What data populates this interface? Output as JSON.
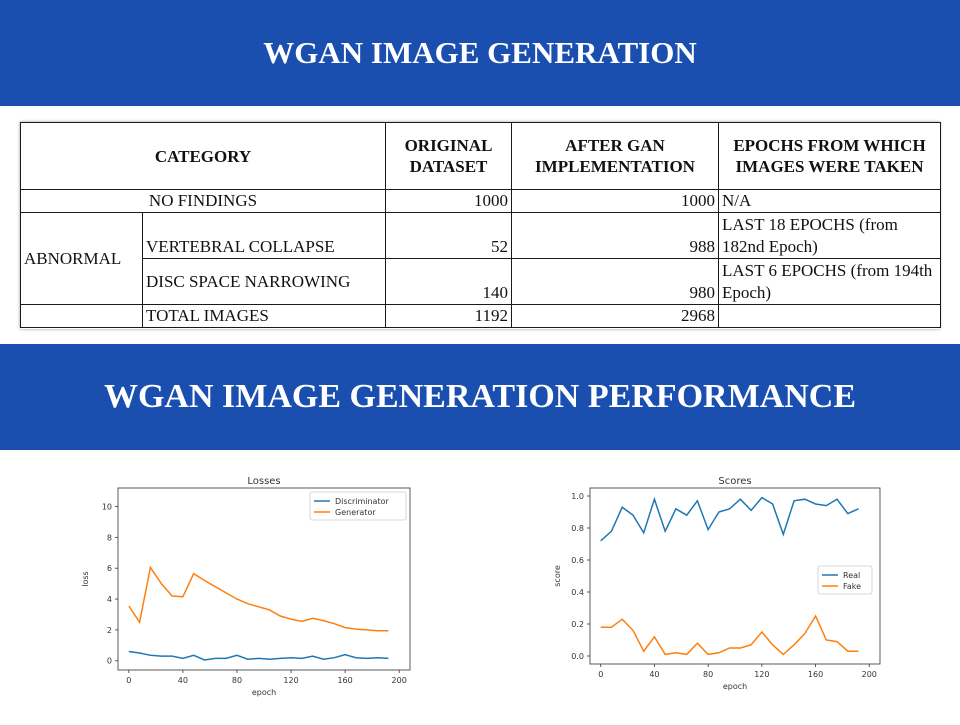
{
  "slide": {
    "title1": "WGAN IMAGE GENERATION",
    "title2": "WGAN IMAGE GENERATION PERFORMANCE"
  },
  "table": {
    "headers": [
      "CATEGORY",
      "ORIGINAL DATASET",
      "AFTER GAN IMPLEMENTATION",
      "EPOCHS FROM WHICH IMAGES WERE TAKEN"
    ],
    "no_findings": {
      "label": "NO FINDINGS",
      "original": "1000",
      "after": "1000",
      "epochs": "N/A"
    },
    "abnormal_label": "ABNORMAL",
    "vertebral": {
      "label": "VERTEBRAL COLLAPSE",
      "original": "52",
      "after": "988",
      "epochs": "LAST 18 EPOCHS (from 182nd Epoch)"
    },
    "disc": {
      "label": "DISC SPACE NARROWING",
      "original": "140",
      "after": "980",
      "epochs": "LAST 6 EPOCHS (from 194th Epoch)"
    },
    "total": {
      "label": "TOTAL IMAGES",
      "original": "1192",
      "after": "2968",
      "epochs": ""
    }
  },
  "chart_data": [
    {
      "type": "line",
      "title": "Losses",
      "xlabel": "epoch",
      "ylabel": "loss",
      "xlim": [
        -8,
        208
      ],
      "ylim": [
        -0.6,
        11.2
      ],
      "xticks": [
        0,
        40,
        80,
        120,
        160,
        200
      ],
      "yticks": [
        0,
        2,
        4,
        6,
        8,
        10
      ],
      "legend_position": "top-right",
      "x": [
        0,
        8,
        16,
        24,
        32,
        40,
        48,
        56,
        64,
        72,
        80,
        88,
        96,
        104,
        112,
        120,
        128,
        136,
        144,
        152,
        160,
        168,
        176,
        184,
        192
      ],
      "series": [
        {
          "name": "Discriminator",
          "color": "#1f77b4",
          "values": [
            0.6,
            0.5,
            0.35,
            0.3,
            0.3,
            0.15,
            0.35,
            0.05,
            0.15,
            0.15,
            0.35,
            0.1,
            0.15,
            0.1,
            0.15,
            0.2,
            0.15,
            0.3,
            0.1,
            0.2,
            0.4,
            0.2,
            0.15,
            0.2,
            0.15
          ]
        },
        {
          "name": "Generator",
          "color": "#ff7f0e",
          "values": [
            3.55,
            2.5,
            6.05,
            5.0,
            4.2,
            4.15,
            5.65,
            5.2,
            4.8,
            4.4,
            4.0,
            3.7,
            3.5,
            3.3,
            2.9,
            2.7,
            2.55,
            2.75,
            2.6,
            2.4,
            2.15,
            2.05,
            2.0,
            1.95,
            1.95
          ]
        }
      ]
    },
    {
      "type": "line",
      "title": "Scores",
      "xlabel": "epoch",
      "ylabel": "score",
      "xlim": [
        -8,
        208
      ],
      "ylim": [
        -0.05,
        1.05
      ],
      "xticks": [
        0,
        40,
        80,
        120,
        160,
        200
      ],
      "yticks": [
        0.0,
        0.2,
        0.4,
        0.6,
        0.8,
        1.0
      ],
      "legend_position": "center-right",
      "x": [
        0,
        8,
        16,
        24,
        32,
        40,
        48,
        56,
        64,
        72,
        80,
        88,
        96,
        104,
        112,
        120,
        128,
        136,
        144,
        152,
        160,
        168,
        176,
        184,
        192
      ],
      "series": [
        {
          "name": "Real",
          "color": "#1f77b4",
          "values": [
            0.72,
            0.78,
            0.93,
            0.88,
            0.77,
            0.98,
            0.78,
            0.92,
            0.88,
            0.97,
            0.79,
            0.9,
            0.92,
            0.98,
            0.91,
            0.99,
            0.95,
            0.76,
            0.97,
            0.98,
            0.95,
            0.94,
            0.98,
            0.89,
            0.92
          ]
        },
        {
          "name": "Fake",
          "color": "#ff7f0e",
          "values": [
            0.18,
            0.18,
            0.23,
            0.16,
            0.03,
            0.12,
            0.01,
            0.02,
            0.01,
            0.08,
            0.01,
            0.02,
            0.05,
            0.05,
            0.07,
            0.15,
            0.07,
            0.01,
            0.07,
            0.14,
            0.25,
            0.1,
            0.09,
            0.03,
            0.03
          ]
        }
      ]
    }
  ]
}
